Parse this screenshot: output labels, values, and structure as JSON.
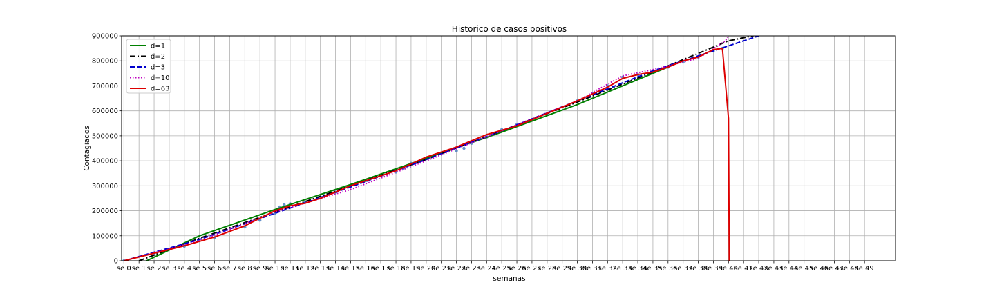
{
  "chart_data": {
    "type": "line",
    "title": "Historico de casos positivos",
    "xlabel": "semanas",
    "ylabel": "Contagiados",
    "xlim": [
      0,
      52
    ],
    "ylim": [
      0,
      900000
    ],
    "x_ticks": [
      "se 0",
      "se 1",
      "se 2",
      "se 3",
      "se 4",
      "se 5",
      "se 6",
      "se 7",
      "se 8",
      "se 9",
      "se 10",
      "se 11",
      "se 12",
      "se 13",
      "se 14",
      "se 15",
      "se 16",
      "se 17",
      "se 18",
      "se 19",
      "se 20",
      "se 21",
      "se 22",
      "se 23",
      "se 24",
      "se 25",
      "se 26",
      "se 27",
      "se 28",
      "se 29",
      "se 30",
      "se 31",
      "se 32",
      "se 33",
      "se 34",
      "se 35",
      "se 36",
      "se 37",
      "se 38",
      "se 39",
      "se 40",
      "se 41",
      "se 42",
      "se 43",
      "se 44",
      "se 45",
      "se 46",
      "se 47",
      "se 48",
      "se 49"
    ],
    "y_ticks": [
      "0",
      "100000",
      "200000",
      "300000",
      "400000",
      "500000",
      "600000",
      "700000",
      "800000",
      "900000"
    ],
    "grid": true,
    "legend_position": "top-left",
    "series": [
      {
        "name": "d=1",
        "color": "#008000",
        "style": "solid",
        "x": [
          1.5,
          5,
          10,
          15,
          20,
          25,
          30,
          36
        ],
        "y": [
          0,
          100000,
          205000,
          305000,
          410000,
          515000,
          625000,
          775000
        ]
      },
      {
        "name": "d=2",
        "color": "#000000",
        "style": "dashdot",
        "x": [
          1,
          5,
          10,
          15,
          20,
          25,
          30,
          35,
          40,
          42
        ],
        "y": [
          0,
          90000,
          195000,
          300000,
          405000,
          520000,
          635000,
          755000,
          880000,
          905000
        ]
      },
      {
        "name": "d=3",
        "color": "#0000cc",
        "style": "dashed",
        "x": [
          0,
          5,
          10,
          15,
          20,
          25,
          30,
          35,
          40,
          42
        ],
        "y": [
          0,
          85000,
          190000,
          295000,
          405000,
          520000,
          640000,
          760000,
          860000,
          900000
        ]
      },
      {
        "name": "d=10",
        "color": "#bf00bf",
        "style": "dotted",
        "x": [
          0,
          5,
          10,
          15,
          20,
          25,
          30,
          33,
          35,
          38,
          39.8,
          40
        ],
        "y": [
          0,
          80000,
          195000,
          285000,
          400000,
          520000,
          640000,
          740000,
          765000,
          810000,
          880000,
          900000
        ]
      },
      {
        "name": "d=63",
        "color": "#dd0000",
        "style": "solid",
        "x": [
          0,
          2,
          4,
          6,
          8,
          9,
          10,
          11,
          12,
          13,
          14,
          15,
          16,
          18,
          20,
          22,
          23,
          24,
          26,
          28,
          30,
          32,
          33,
          34,
          35,
          36,
          37,
          38,
          39,
          39.6,
          40,
          40.05
        ],
        "y": [
          0,
          30000,
          60000,
          95000,
          140000,
          170000,
          200000,
          220000,
          230000,
          250000,
          275000,
          300000,
          320000,
          360000,
          415000,
          455000,
          480000,
          505000,
          540000,
          590000,
          640000,
          695000,
          730000,
          745000,
          755000,
          775000,
          800000,
          815000,
          845000,
          850000,
          570000,
          0
        ]
      }
    ],
    "observed": {
      "name": "",
      "color": "#4a7fc1",
      "x": [
        0,
        2,
        4,
        6,
        8,
        9,
        10,
        10.3,
        10.6,
        11,
        12,
        13,
        14,
        15,
        16,
        17,
        18,
        18.5,
        19,
        20,
        21,
        22,
        22.5,
        23,
        24,
        25,
        26,
        27,
        28,
        29,
        30,
        31,
        32,
        33,
        34,
        35,
        36,
        37,
        38,
        39,
        39.6
      ],
      "y": [
        0,
        28000,
        58000,
        92000,
        135000,
        162000,
        190000,
        215000,
        225000,
        228000,
        235000,
        255000,
        275000,
        300000,
        320000,
        340000,
        355000,
        370000,
        390000,
        410000,
        430000,
        440000,
        450000,
        470000,
        495000,
        525000,
        545000,
        565000,
        590000,
        615000,
        640000,
        670000,
        700000,
        735000,
        745000,
        760000,
        775000,
        795000,
        815000,
        840000,
        850000
      ]
    }
  }
}
